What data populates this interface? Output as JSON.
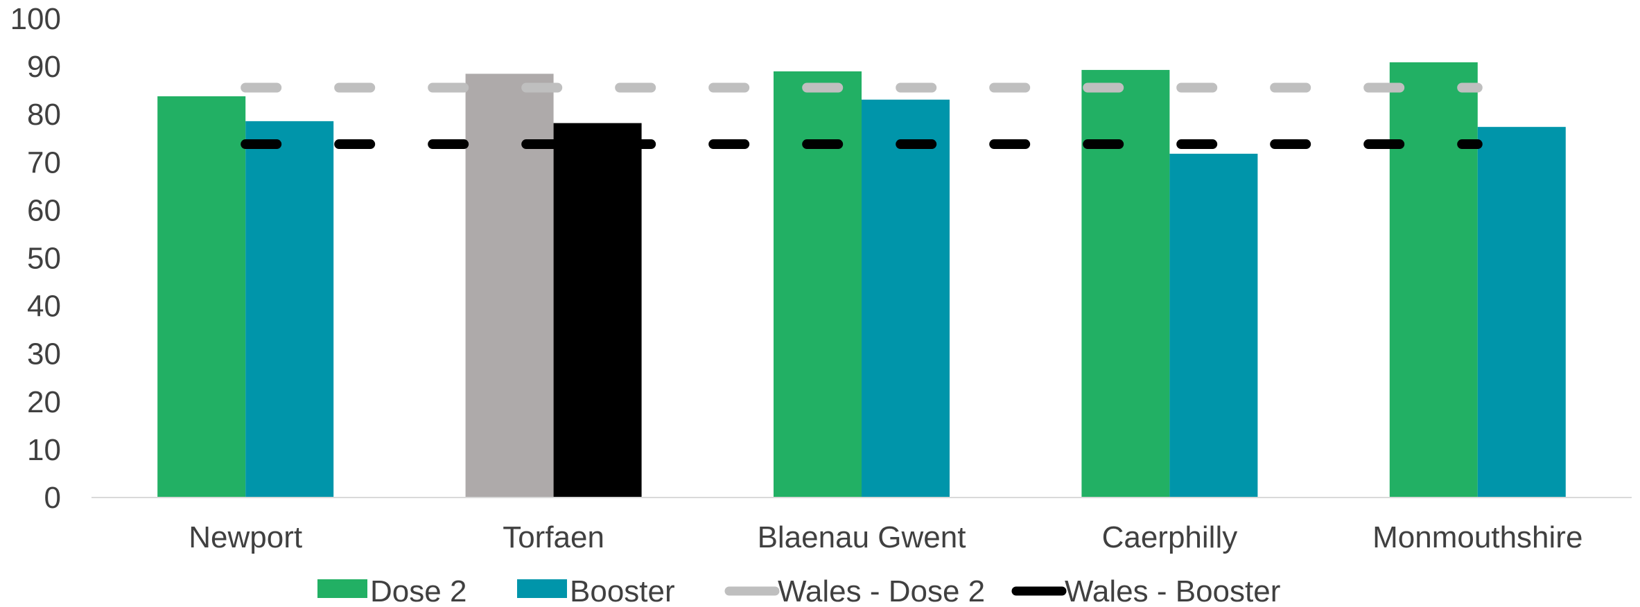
{
  "chart_data": {
    "type": "bar",
    "title": "",
    "xlabel": "",
    "ylabel": "",
    "ylim": [
      0,
      100
    ],
    "yticks": [
      0,
      10,
      20,
      30,
      40,
      50,
      60,
      70,
      80,
      90,
      100
    ],
    "grid": false,
    "legend_position": "bottom",
    "categories": [
      "Newport",
      "Torfaen",
      "Blaenau Gwent",
      "Caerphilly",
      "Monmouthshire"
    ],
    "highlight_category": "Torfaen",
    "series": [
      {
        "name": "Dose 2",
        "kind": "bar",
        "color": "#22b064",
        "highlight_color": "#aeaaaa",
        "values": [
          83.8,
          88.5,
          89.0,
          89.3,
          90.9
        ]
      },
      {
        "name": "Booster",
        "kind": "bar",
        "color": "#0095aa",
        "highlight_color": "#000000",
        "values": [
          78.6,
          78.2,
          83.1,
          71.8,
          77.4
        ]
      },
      {
        "name": "Wales - Dose 2",
        "kind": "line",
        "style": "dashed",
        "color": "#bfbfbf",
        "value": 85.6
      },
      {
        "name": "Wales - Booster",
        "kind": "line",
        "style": "dashed",
        "color": "#000000",
        "value": 73.8
      }
    ]
  }
}
